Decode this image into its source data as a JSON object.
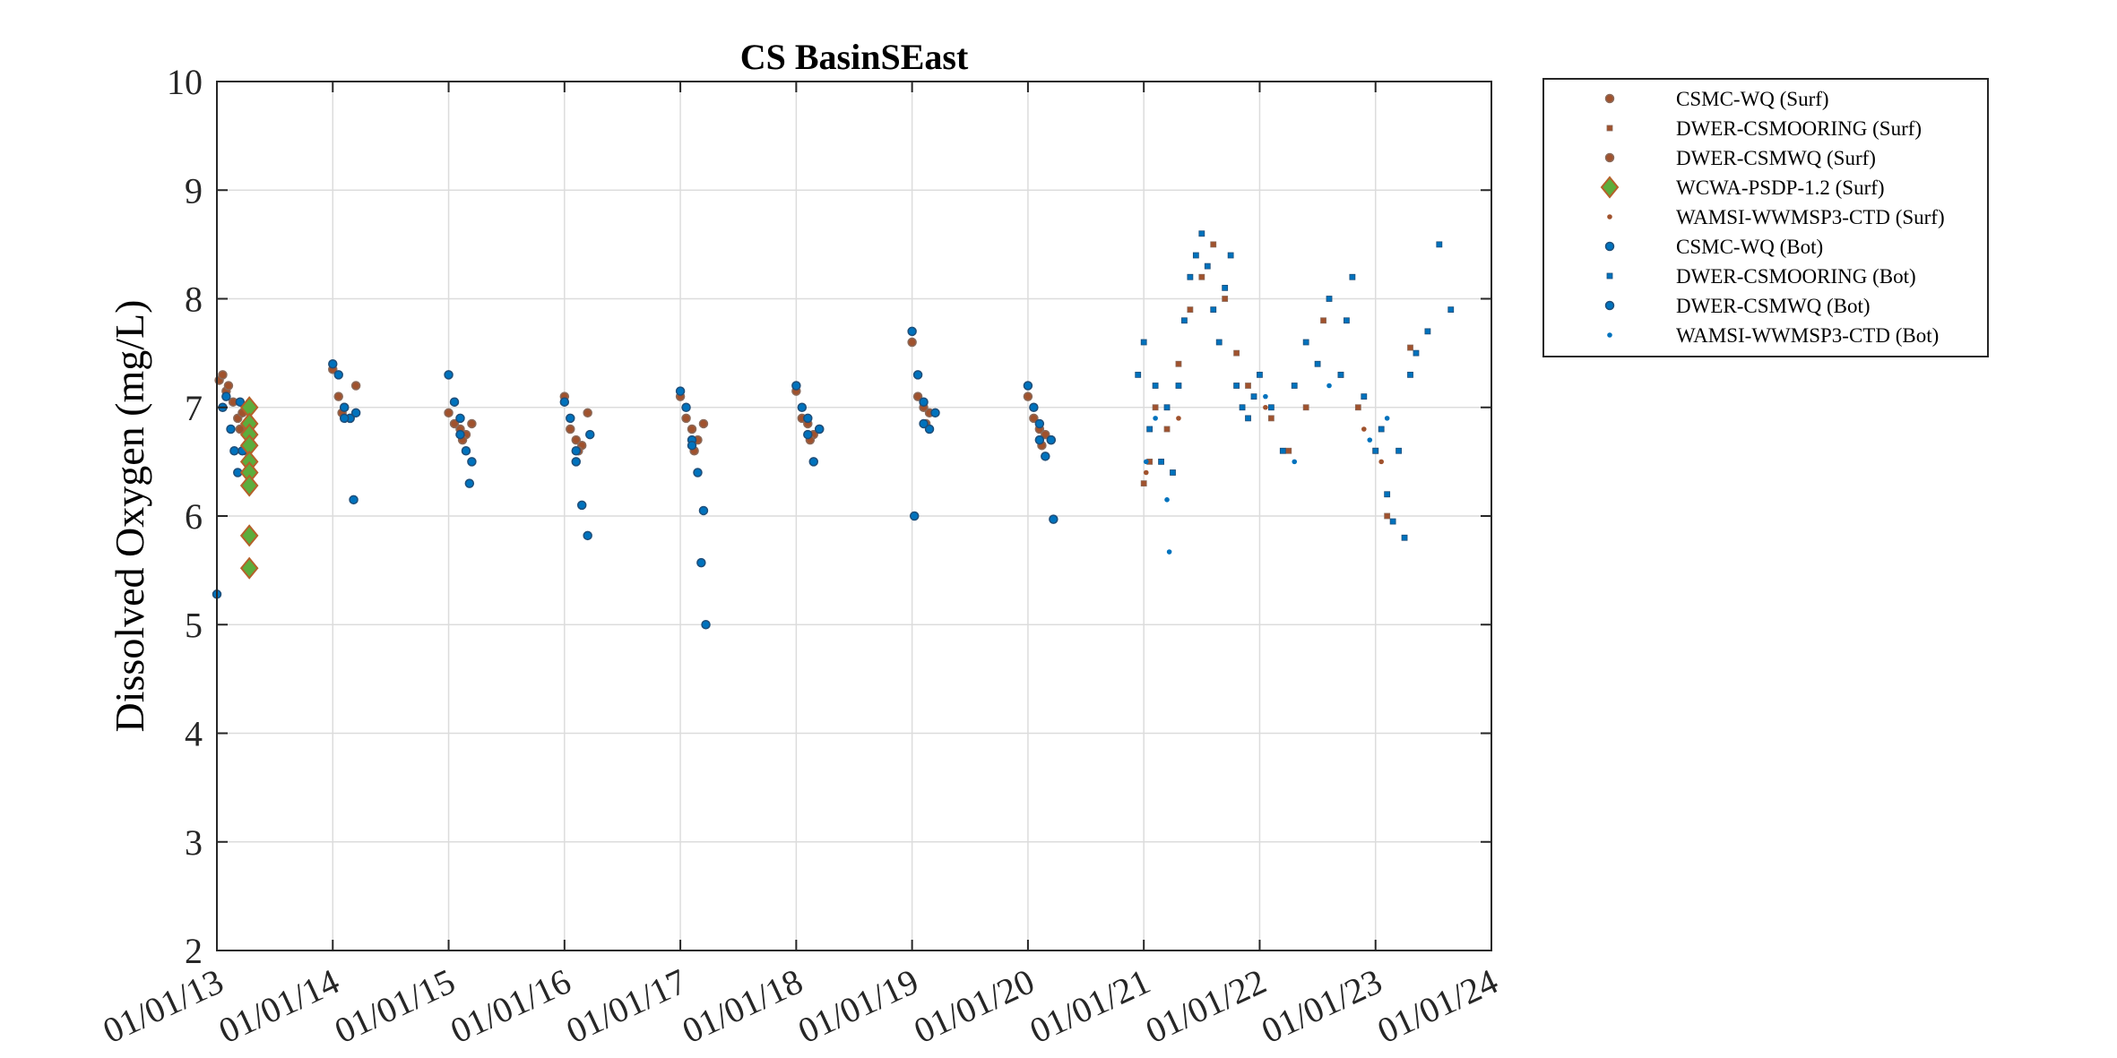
{
  "chart_data": {
    "type": "scatter",
    "title": "CS BasinSEast",
    "xlabel": "",
    "ylabel": "Dissolved Oxygen (mg/L)",
    "ylim": [
      2,
      10
    ],
    "xlim": [
      2013.0,
      2024.0
    ],
    "yticks": [
      2,
      3,
      4,
      5,
      6,
      7,
      8,
      9,
      10
    ],
    "ytick_labels": [
      "2",
      "3",
      "4",
      "5",
      "6",
      "7",
      "8",
      "9",
      "10"
    ],
    "xticks": [
      2013,
      2014,
      2015,
      2016,
      2017,
      2018,
      2019,
      2020,
      2021,
      2022,
      2023,
      2024
    ],
    "xtick_labels": [
      "01/01/13",
      "01/01/14",
      "01/01/15",
      "01/01/16",
      "01/01/17",
      "01/01/18",
      "01/01/19",
      "01/01/20",
      "01/01/21",
      "01/01/22",
      "01/01/23",
      "01/01/24"
    ],
    "grid": true,
    "legend_position": "outside-top-right",
    "colors": {
      "surf_fill": "#a0522d",
      "surf_edge": "#8b6a5a",
      "bot_fill": "#0072bd",
      "bot_edge": "#1f4e79",
      "wcwa_fill": "#5cad3c",
      "wcwa_edge": "#b5602a",
      "axis": "#262626",
      "grid": "#dcdcdc"
    },
    "series": [
      {
        "name": "CSMC-WQ (Surf)",
        "marker": "circle",
        "fill": "#a0522d",
        "edge": "#8b6a5a",
        "x": [
          2013.02,
          2013.05,
          2013.08,
          2013.1,
          2013.14,
          2013.18,
          2013.22,
          2014.0,
          2014.05,
          2014.1,
          2014.15,
          2014.2,
          2015.0,
          2015.05,
          2015.1,
          2015.15,
          2015.2,
          2016.0,
          2016.05,
          2016.1,
          2016.15,
          2016.2,
          2017.0,
          2017.05,
          2017.1,
          2017.15,
          2017.2,
          2018.0,
          2018.05,
          2018.1,
          2018.15,
          2018.2,
          2019.0,
          2019.05,
          2019.1,
          2019.15,
          2020.0,
          2020.05,
          2020.1,
          2020.15,
          2020.2
        ],
        "y": [
          7.25,
          7.3,
          7.15,
          7.2,
          7.05,
          6.9,
          6.95,
          7.35,
          7.1,
          7.0,
          6.9,
          7.2,
          6.95,
          6.85,
          6.8,
          6.75,
          6.85,
          7.1,
          6.8,
          6.7,
          6.65,
          6.95,
          7.1,
          6.9,
          6.8,
          6.7,
          6.85,
          7.15,
          6.9,
          6.85,
          6.75,
          6.8,
          7.6,
          7.1,
          7.0,
          6.95,
          7.1,
          6.9,
          6.8,
          6.75,
          6.7
        ]
      },
      {
        "name": "DWER-CSMOORING (Surf)",
        "marker": "square",
        "fill": "#a0522d",
        "edge": "#8b6a5a",
        "x": [
          2021.0,
          2021.05,
          2021.1,
          2021.2,
          2021.3,
          2021.4,
          2021.5,
          2021.6,
          2021.7,
          2021.8,
          2021.9,
          2022.1,
          2022.25,
          2022.4,
          2022.55,
          2022.7,
          2022.85,
          2023.0,
          2023.1,
          2023.3
        ],
        "y": [
          6.3,
          6.5,
          7.0,
          6.8,
          7.4,
          7.9,
          8.2,
          8.5,
          8.0,
          7.5,
          7.2,
          6.9,
          6.6,
          7.0,
          7.8,
          7.3,
          7.0,
          6.6,
          6.0,
          7.55
        ]
      },
      {
        "name": "DWER-CSMWQ (Surf)",
        "marker": "circle",
        "fill": "#a0522d",
        "edge": "#8b6a5a",
        "x": [
          2013.2,
          2013.25,
          2014.08,
          2015.12,
          2016.12,
          2017.12,
          2018.12,
          2019.12,
          2020.12
        ],
        "y": [
          6.8,
          6.6,
          6.95,
          6.7,
          6.6,
          6.6,
          6.7,
          6.85,
          6.65
        ]
      },
      {
        "name": "WCWA-PSDP-1.2 (Surf)",
        "marker": "diamond",
        "fill": "#5cad3c",
        "edge": "#b5602a",
        "x": [
          2013.28,
          2013.28,
          2013.28,
          2013.28,
          2013.28,
          2013.28,
          2013.28,
          2013.28,
          2013.28
        ],
        "y": [
          7.0,
          6.85,
          6.75,
          6.65,
          6.5,
          6.4,
          6.28,
          5.82,
          5.52
        ]
      },
      {
        "name": "WAMSI-WWMSP3-CTD (Surf)",
        "marker": "dot",
        "fill": "#a0522d",
        "edge": "#a0522d",
        "x": [
          2021.02,
          2021.3,
          2022.05,
          2022.9,
          2023.05
        ],
        "y": [
          6.4,
          6.9,
          7.0,
          6.8,
          6.5
        ]
      },
      {
        "name": "CSMC-WQ (Bot)",
        "marker": "circle",
        "fill": "#0072bd",
        "edge": "#1f4e79",
        "x": [
          2013.0,
          2013.05,
          2013.08,
          2013.12,
          2013.15,
          2013.18,
          2013.2,
          2014.0,
          2014.05,
          2014.1,
          2014.15,
          2014.2,
          2014.18,
          2015.0,
          2015.05,
          2015.1,
          2015.15,
          2015.2,
          2015.18,
          2016.0,
          2016.05,
          2016.1,
          2016.15,
          2016.2,
          2016.22,
          2017.0,
          2017.05,
          2017.1,
          2017.15,
          2017.18,
          2017.2,
          2017.22,
          2018.0,
          2018.05,
          2018.1,
          2018.15,
          2018.2,
          2019.0,
          2019.02,
          2019.05,
          2019.1,
          2019.15,
          2019.2,
          2020.0,
          2020.05,
          2020.1,
          2020.15,
          2020.2,
          2020.22
        ],
        "y": [
          5.28,
          7.0,
          7.1,
          6.8,
          6.6,
          6.4,
          7.05,
          7.4,
          7.3,
          7.0,
          6.9,
          6.95,
          6.15,
          7.3,
          7.05,
          6.9,
          6.6,
          6.5,
          6.3,
          7.05,
          6.9,
          6.5,
          6.1,
          5.82,
          6.75,
          7.15,
          7.0,
          6.7,
          6.4,
          5.57,
          6.05,
          5.0,
          7.2,
          7.0,
          6.9,
          6.5,
          6.8,
          7.7,
          6.0,
          7.3,
          7.05,
          6.8,
          6.95,
          7.2,
          7.0,
          6.85,
          6.55,
          6.7,
          5.97
        ]
      },
      {
        "name": "DWER-CSMOORING (Bot)",
        "marker": "square",
        "fill": "#0072bd",
        "edge": "#1f4e79",
        "x": [
          2020.95,
          2021.0,
          2021.05,
          2021.1,
          2021.15,
          2021.2,
          2021.25,
          2021.3,
          2021.35,
          2021.4,
          2021.45,
          2021.5,
          2021.55,
          2021.6,
          2021.65,
          2021.7,
          2021.75,
          2021.8,
          2021.85,
          2021.9,
          2021.95,
          2022.0,
          2022.1,
          2022.2,
          2022.3,
          2022.4,
          2022.5,
          2022.6,
          2022.7,
          2022.75,
          2022.8,
          2022.9,
          2023.0,
          2023.05,
          2023.1,
          2023.15,
          2023.2,
          2023.25,
          2023.3,
          2023.35,
          2023.45,
          2023.55,
          2023.65
        ],
        "y": [
          7.3,
          7.6,
          6.8,
          7.2,
          6.5,
          7.0,
          6.4,
          7.2,
          7.8,
          8.2,
          8.4,
          8.6,
          8.3,
          7.9,
          7.6,
          8.1,
          8.4,
          7.2,
          7.0,
          6.9,
          7.1,
          7.3,
          7.0,
          6.6,
          7.2,
          7.6,
          7.4,
          8.0,
          7.3,
          7.8,
          8.2,
          7.1,
          6.6,
          6.8,
          6.2,
          5.95,
          6.6,
          5.8,
          7.3,
          7.5,
          7.7,
          8.5,
          7.9
        ]
      },
      {
        "name": "DWER-CSMWQ (Bot)",
        "marker": "circle",
        "fill": "#0072bd",
        "edge": "#1f4e79",
        "x": [
          2013.22,
          2014.1,
          2015.1,
          2016.1,
          2017.1,
          2018.1,
          2019.1,
          2020.1
        ],
        "y": [
          6.6,
          6.9,
          6.75,
          6.6,
          6.65,
          6.75,
          6.85,
          6.7
        ]
      },
      {
        "name": "WAMSI-WWMSP3-CTD (Bot)",
        "marker": "dot",
        "fill": "#0072bd",
        "edge": "#0072bd",
        "x": [
          2021.02,
          2021.1,
          2021.2,
          2021.22,
          2022.05,
          2022.3,
          2022.6,
          2022.95,
          2023.1
        ],
        "y": [
          6.5,
          6.9,
          6.15,
          5.67,
          7.1,
          6.5,
          7.2,
          6.7,
          6.9
        ]
      }
    ]
  }
}
